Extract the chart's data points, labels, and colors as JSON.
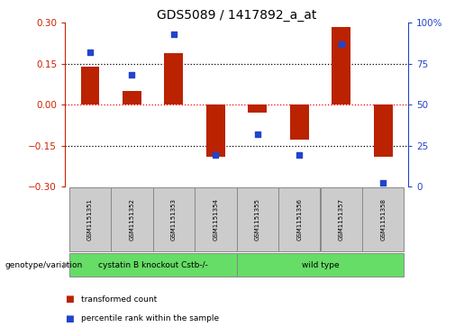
{
  "title": "GDS5089 / 1417892_a_at",
  "samples": [
    "GSM1151351",
    "GSM1151352",
    "GSM1151353",
    "GSM1151354",
    "GSM1151355",
    "GSM1151356",
    "GSM1151357",
    "GSM1151358"
  ],
  "bar_values": [
    0.14,
    0.05,
    0.19,
    -0.19,
    -0.03,
    -0.13,
    0.285,
    -0.19
  ],
  "scatter_values": [
    82,
    68,
    93,
    19,
    32,
    19,
    87,
    2
  ],
  "bar_color": "#bb2200",
  "scatter_color": "#2244cc",
  "ylim": [
    -0.3,
    0.3
  ],
  "y2lim": [
    0,
    100
  ],
  "yticks": [
    -0.3,
    -0.15,
    0,
    0.15,
    0.3
  ],
  "y2ticks": [
    0,
    25,
    50,
    75,
    100
  ],
  "group1_label": "cystatin B knockout Cstb-/-",
  "group2_label": "wild type",
  "group1_count": 4,
  "group2_count": 4,
  "group_color": "#66dd66",
  "sample_box_color": "#cccccc",
  "legend_bar_label": "transformed count",
  "legend_scatter_label": "percentile rank within the sample",
  "genotype_label": "genotype/variation",
  "ylabel_color": "#cc2200",
  "y2label_color": "#2244cc",
  "title_fontsize": 10,
  "tick_fontsize": 7.5,
  "bar_width": 0.45
}
